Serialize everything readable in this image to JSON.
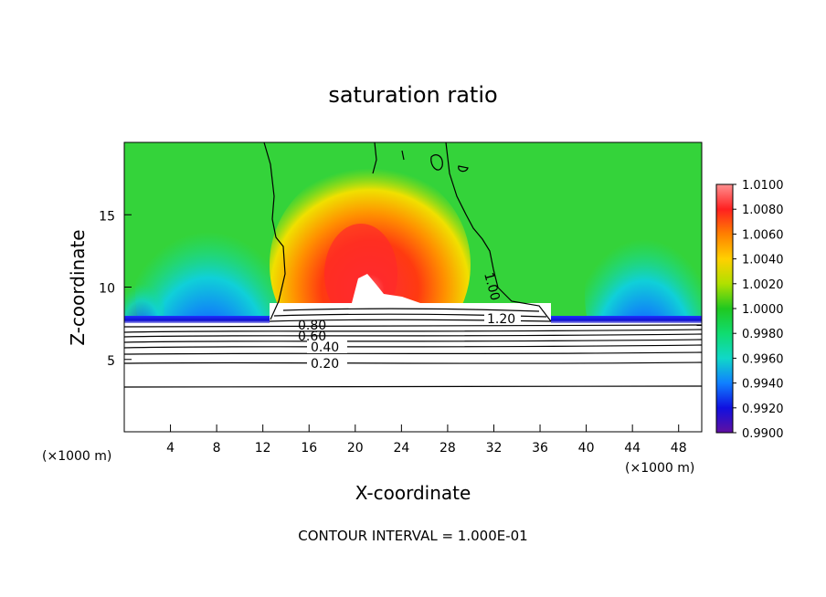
{
  "chart_data": {
    "type": "heatmap",
    "title": "saturation ratio",
    "xlabel": "X-coordinate",
    "ylabel": "Z-coordinate",
    "x_unit": "(×1000 m)",
    "x_unit_right": "(×1000 m)",
    "xlim": [
      0,
      50
    ],
    "ylim": [
      0,
      20
    ],
    "xticks": [
      "4",
      "8",
      "12",
      "16",
      "20",
      "24",
      "28",
      "32",
      "36",
      "40",
      "44",
      "48"
    ],
    "yticks": [
      "5",
      "10",
      "15"
    ],
    "colorbar": {
      "labels": [
        "1.0100",
        "1.0080",
        "1.0060",
        "1.0040",
        "1.0020",
        "1.0000",
        "0.9980",
        "0.9960",
        "0.9940",
        "0.9920",
        "0.9900"
      ],
      "colors": [
        "#ff6060",
        "#ff1010",
        "#ff8000",
        "#ffd000",
        "#b0e000",
        "#20c820",
        "#10dc70",
        "#10d8c8",
        "#1080ff",
        "#1010e0",
        "#6010a0"
      ]
    },
    "contour_labels": [
      "0.20",
      "0.40",
      "0.60",
      "0.80",
      "1.20",
      "1.00"
    ],
    "footer": "CONTOUR INTERVAL = 1.000E-01"
  }
}
